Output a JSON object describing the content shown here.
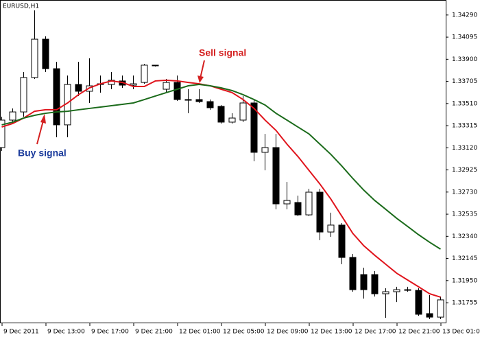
{
  "chart_data": {
    "type": "candlestick",
    "title": "EURUSD,H1",
    "open": [
      1.33122,
      1.33364,
      1.33436,
      1.33739,
      1.34077,
      1.33817,
      1.33322,
      1.33678,
      1.33618,
      1.33678,
      1.33678,
      1.33709,
      1.33672,
      1.33696,
      1.33842,
      1.33636,
      1.33696,
      1.33545,
      1.33545,
      1.33527,
      1.33485,
      1.33346,
      1.33364,
      1.33515,
      1.3308,
      1.33122,
      1.32626,
      1.32638,
      1.32529,
      1.32729,
      1.32378,
      1.32439,
      1.32154,
      1.32003,
      1.32003,
      1.31834,
      1.31852,
      1.3187,
      1.31864,
      1.31659,
      1.31628
    ],
    "high": [
      1.33394,
      1.33467,
      1.33787,
      1.34331,
      1.34102,
      1.33878,
      1.33757,
      1.33878,
      1.33908,
      1.33757,
      1.33787,
      1.33757,
      1.33757,
      1.3386,
      1.33848,
      1.33727,
      1.33757,
      1.33636,
      1.33636,
      1.33545,
      1.33497,
      1.33424,
      1.33576,
      1.33545,
      1.33243,
      1.33243,
      1.3282,
      1.32699,
      1.32759,
      1.32759,
      1.32548,
      1.32457,
      1.32185,
      1.32064,
      1.32034,
      1.31882,
      1.31895,
      1.31895,
      1.31882,
      1.31822,
      1.3181
    ],
    "low": [
      1.33092,
      1.33334,
      1.33394,
      1.33727,
      1.33787,
      1.33213,
      1.33213,
      1.33576,
      1.33515,
      1.33606,
      1.33636,
      1.33648,
      1.33636,
      1.33684,
      1.33836,
      1.33606,
      1.33533,
      1.33424,
      1.33515,
      1.33455,
      1.33334,
      1.33334,
      1.33346,
      1.33001,
      1.32922,
      1.32578,
      1.32578,
      1.32517,
      1.32517,
      1.32306,
      1.32336,
      1.32094,
      1.31852,
      1.31792,
      1.3181,
      1.31622,
      1.31761,
      1.31852,
      1.3164,
      1.3161,
      1.3161
    ],
    "close": [
      1.33364,
      1.33436,
      1.33739,
      1.34077,
      1.33817,
      1.33322,
      1.33678,
      1.33618,
      1.33666,
      1.33684,
      1.33715,
      1.33672,
      1.33684,
      1.33848,
      1.33848,
      1.33696,
      1.33545,
      1.33539,
      1.33527,
      1.33473,
      1.33346,
      1.33382,
      1.33515,
      1.3308,
      1.33122,
      1.32626,
      1.32656,
      1.32529,
      1.32729,
      1.32378,
      1.32439,
      1.32154,
      1.3187,
      1.3187,
      1.31834,
      1.31852,
      1.3187,
      1.31864,
      1.31653,
      1.31628,
      1.3178
    ],
    "series": [
      {
        "color": "#e0141c",
        "values": [
          1.33303,
          1.33334,
          1.33382,
          1.33442,
          1.33455,
          1.33455,
          1.33515,
          1.33588,
          1.33648,
          1.33684,
          1.33709,
          1.33696,
          1.3366,
          1.3366,
          1.33709,
          1.33715,
          1.33709,
          1.33696,
          1.33684,
          1.33666,
          1.33636,
          1.33606,
          1.33545,
          1.33467,
          1.33364,
          1.33273,
          1.33152,
          1.33043,
          1.32922,
          1.32801,
          1.32668,
          1.32517,
          1.32366,
          1.32257,
          1.32173,
          1.32094,
          1.32015,
          1.31955,
          1.31895,
          1.31834,
          1.31804
        ]
      },
      {
        "color": "#1b6b1b",
        "values": [
          1.33322,
          1.33346,
          1.33382,
          1.33406,
          1.33424,
          1.33436,
          1.33442,
          1.33455,
          1.33467,
          1.33479,
          1.33491,
          1.33503,
          1.33515,
          1.33545,
          1.33576,
          1.33606,
          1.33636,
          1.33666,
          1.33678,
          1.33666,
          1.33648,
          1.33624,
          1.33588,
          1.33545,
          1.33497,
          1.33424,
          1.33364,
          1.33303,
          1.33243,
          1.33152,
          1.33062,
          1.32959,
          1.3285,
          1.32747,
          1.32656,
          1.32578,
          1.32499,
          1.32427,
          1.32354,
          1.32288,
          1.32227
        ]
      }
    ],
    "ylim": [
      1.3158,
      1.3441
    ],
    "yticks": [
      {
        "value": 1.3429,
        "label": "1.34290"
      },
      {
        "value": 1.34095,
        "label": "1.34095"
      },
      {
        "value": 1.339,
        "label": "1.33900"
      },
      {
        "value": 1.33705,
        "label": "1.33705"
      },
      {
        "value": 1.3351,
        "label": "1.33510"
      },
      {
        "value": 1.33315,
        "label": "1.33315"
      },
      {
        "value": 1.3312,
        "label": "1.33120"
      },
      {
        "value": 1.32925,
        "label": "1.32925"
      },
      {
        "value": 1.3273,
        "label": "1.32730"
      },
      {
        "value": 1.32535,
        "label": "1.32535"
      },
      {
        "value": 1.3234,
        "label": "1.32340"
      },
      {
        "value": 1.32145,
        "label": "1.32145"
      },
      {
        "value": 1.3195,
        "label": "1.31950"
      },
      {
        "value": 1.31755,
        "label": "1.31755"
      }
    ],
    "xticks": [
      {
        "value": 0,
        "label": "9 Dec 2011"
      },
      {
        "value": 4,
        "label": "9 Dec 13:00"
      },
      {
        "value": 8,
        "label": "9 Dec 17:00"
      },
      {
        "value": 12,
        "label": "9 Dec 21:00"
      },
      {
        "value": 16,
        "label": "12 Dec 01:00"
      },
      {
        "value": 20,
        "label": "12 Dec 05:00"
      },
      {
        "value": 24,
        "label": "12 Dec 09:00"
      },
      {
        "value": 28,
        "label": "12 Dec 13:00"
      },
      {
        "value": 32,
        "label": "12 Dec 17:00"
      },
      {
        "value": 36,
        "label": "12 Dec 21:00"
      },
      {
        "value": 40,
        "label": "13 Dec 01:00"
      }
    ],
    "annotations": [
      {
        "text": "Sell signal",
        "color": "#d42020"
      },
      {
        "text": "Buy signal",
        "color": "#1c3c9c"
      }
    ]
  }
}
